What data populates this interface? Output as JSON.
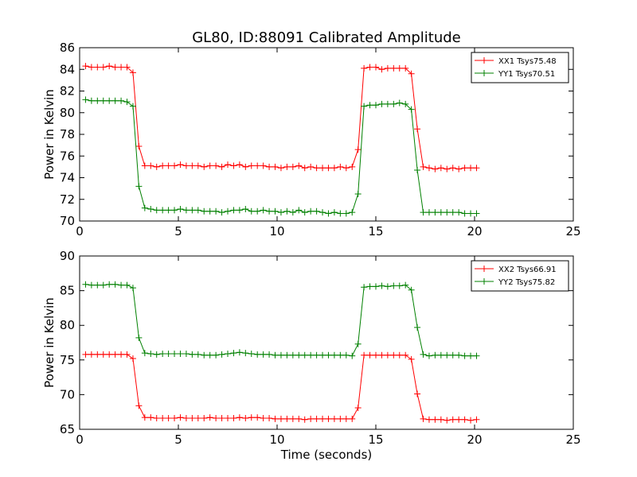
{
  "chart_data": [
    {
      "type": "line",
      "title": "GL80, ID:88091 Calibrated Amplitude",
      "xlabel": "",
      "ylabel": "Power in Kelvin",
      "xlim": [
        0,
        25
      ],
      "ylim": [
        70,
        86
      ],
      "xticks": [
        "0",
        "5",
        "10",
        "15",
        "20",
        "25"
      ],
      "yticks": [
        "70",
        "72",
        "74",
        "76",
        "78",
        "80",
        "82",
        "84",
        "86"
      ],
      "x": [
        0.3,
        0.6,
        0.9,
        1.2,
        1.5,
        1.8,
        2.1,
        2.4,
        2.7,
        3.0,
        3.3,
        3.6,
        3.9,
        4.2,
        4.5,
        4.8,
        5.1,
        5.4,
        5.7,
        6.0,
        6.3,
        6.6,
        6.9,
        7.2,
        7.5,
        7.8,
        8.1,
        8.4,
        8.7,
        9.0,
        9.3,
        9.6,
        9.9,
        10.2,
        10.5,
        10.8,
        11.1,
        11.4,
        11.7,
        12.0,
        12.3,
        12.6,
        12.9,
        13.2,
        13.5,
        13.8,
        14.1,
        14.4,
        14.7,
        15.0,
        15.3,
        15.6,
        15.9,
        16.2,
        16.5,
        16.8,
        17.1,
        17.4,
        17.7,
        18.0,
        18.3,
        18.6,
        18.9,
        19.2,
        19.5,
        19.8,
        20.1
      ],
      "grid": false,
      "legend": "top-right",
      "series": [
        {
          "name": "XX1 Tsys75.48",
          "color": "#ff0000",
          "values": [
            84.3,
            84.2,
            84.2,
            84.2,
            84.3,
            84.2,
            84.2,
            84.2,
            83.7,
            76.9,
            75.1,
            75.1,
            75.0,
            75.1,
            75.1,
            75.1,
            75.2,
            75.1,
            75.1,
            75.1,
            75.0,
            75.1,
            75.1,
            75.0,
            75.2,
            75.1,
            75.2,
            75.0,
            75.1,
            75.1,
            75.1,
            75.0,
            75.0,
            74.9,
            75.0,
            75.0,
            75.1,
            74.9,
            75.0,
            74.9,
            74.9,
            74.9,
            74.9,
            75.0,
            74.9,
            75.0,
            76.6,
            84.1,
            84.2,
            84.2,
            84.0,
            84.1,
            84.1,
            84.1,
            84.1,
            83.6,
            78.5,
            75.0,
            74.9,
            74.8,
            74.9,
            74.8,
            74.9,
            74.8,
            74.9,
            74.9,
            74.9
          ]
        },
        {
          "name": "YY1 Tsys70.51",
          "color": "#008000",
          "values": [
            81.2,
            81.1,
            81.1,
            81.1,
            81.1,
            81.1,
            81.1,
            81.0,
            80.6,
            73.2,
            71.2,
            71.1,
            71.0,
            71.0,
            71.0,
            71.0,
            71.1,
            71.0,
            71.0,
            71.0,
            70.9,
            70.9,
            70.9,
            70.8,
            70.9,
            71.0,
            71.0,
            71.1,
            70.9,
            70.9,
            71.0,
            70.9,
            70.9,
            70.8,
            70.9,
            70.8,
            71.0,
            70.8,
            70.9,
            70.9,
            70.8,
            70.7,
            70.8,
            70.7,
            70.7,
            70.8,
            72.5,
            80.6,
            80.7,
            80.7,
            80.8,
            80.8,
            80.8,
            80.9,
            80.8,
            80.3,
            74.7,
            70.8,
            70.8,
            70.8,
            70.8,
            70.8,
            70.8,
            70.8,
            70.7,
            70.7,
            70.7
          ]
        }
      ]
    },
    {
      "type": "line",
      "title": "",
      "xlabel": "Time (seconds)",
      "ylabel": "Power in Kelvin",
      "xlim": [
        0,
        25
      ],
      "ylim": [
        65,
        90
      ],
      "xticks": [
        "0",
        "5",
        "10",
        "15",
        "20",
        "25"
      ],
      "yticks": [
        "65",
        "70",
        "75",
        "80",
        "85",
        "90"
      ],
      "x": [
        0.3,
        0.6,
        0.9,
        1.2,
        1.5,
        1.8,
        2.1,
        2.4,
        2.7,
        3.0,
        3.3,
        3.6,
        3.9,
        4.2,
        4.5,
        4.8,
        5.1,
        5.4,
        5.7,
        6.0,
        6.3,
        6.6,
        6.9,
        7.2,
        7.5,
        7.8,
        8.1,
        8.4,
        8.7,
        9.0,
        9.3,
        9.6,
        9.9,
        10.2,
        10.5,
        10.8,
        11.1,
        11.4,
        11.7,
        12.0,
        12.3,
        12.6,
        12.9,
        13.2,
        13.5,
        13.8,
        14.1,
        14.4,
        14.7,
        15.0,
        15.3,
        15.6,
        15.9,
        16.2,
        16.5,
        16.8,
        17.1,
        17.4,
        17.7,
        18.0,
        18.3,
        18.6,
        18.9,
        19.2,
        19.5,
        19.8,
        20.1
      ],
      "grid": false,
      "legend": "top-right",
      "series": [
        {
          "name": "XX2 Tsys66.91",
          "color": "#ff0000",
          "values": [
            75.8,
            75.8,
            75.8,
            75.8,
            75.8,
            75.8,
            75.8,
            75.8,
            75.2,
            68.4,
            66.7,
            66.7,
            66.6,
            66.6,
            66.6,
            66.6,
            66.7,
            66.6,
            66.6,
            66.6,
            66.6,
            66.7,
            66.6,
            66.6,
            66.6,
            66.6,
            66.7,
            66.6,
            66.7,
            66.7,
            66.6,
            66.6,
            66.5,
            66.5,
            66.5,
            66.5,
            66.5,
            66.4,
            66.5,
            66.5,
            66.5,
            66.5,
            66.5,
            66.5,
            66.5,
            66.5,
            68.1,
            75.7,
            75.7,
            75.7,
            75.7,
            75.7,
            75.7,
            75.7,
            75.7,
            75.1,
            70.1,
            66.5,
            66.4,
            66.4,
            66.4,
            66.3,
            66.4,
            66.4,
            66.4,
            66.3,
            66.4
          ]
        },
        {
          "name": "YY2 Tsys75.82",
          "color": "#008000",
          "values": [
            85.9,
            85.8,
            85.8,
            85.8,
            85.9,
            85.9,
            85.8,
            85.8,
            85.4,
            78.2,
            76.0,
            75.9,
            75.8,
            75.9,
            75.9,
            75.9,
            75.9,
            75.9,
            75.8,
            75.8,
            75.7,
            75.7,
            75.7,
            75.8,
            75.9,
            76.0,
            76.1,
            76.0,
            75.9,
            75.8,
            75.8,
            75.8,
            75.7,
            75.7,
            75.7,
            75.7,
            75.7,
            75.7,
            75.7,
            75.7,
            75.7,
            75.7,
            75.7,
            75.7,
            75.7,
            75.6,
            77.3,
            85.5,
            85.6,
            85.6,
            85.7,
            85.6,
            85.7,
            85.7,
            85.8,
            85.1,
            79.7,
            75.8,
            75.6,
            75.7,
            75.7,
            75.7,
            75.7,
            75.7,
            75.6,
            75.6,
            75.6
          ]
        }
      ]
    }
  ]
}
